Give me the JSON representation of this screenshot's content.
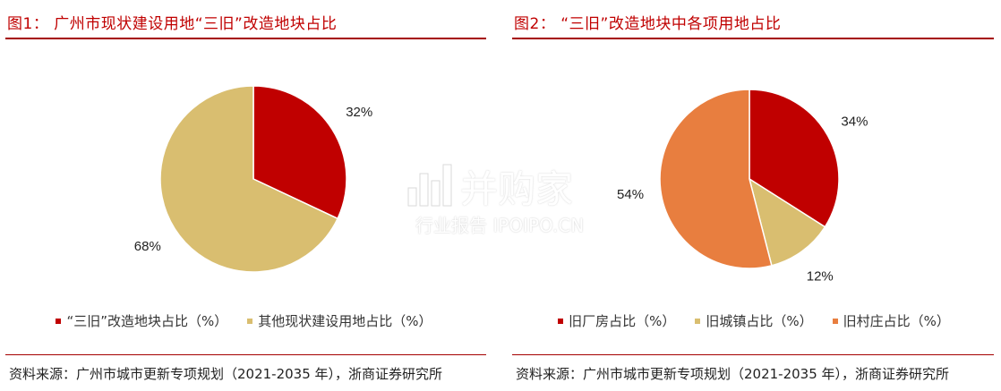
{
  "charts": [
    {
      "title": "图1： 广州市现状建设用地“三旧”改造地块占比",
      "legend": [
        {
          "label": "“三旧”改造地块占比（%）",
          "color": "#C00000"
        },
        {
          "label": "其他现状建设用地占比（%）",
          "color": "#D9BE70"
        }
      ],
      "source": "资料来源：广州市城市更新专项规划（2021-2035 年），浙商证券研究所"
    },
    {
      "title": "图2： “三旧”改造地块中各项用地占比",
      "legend": [
        {
          "label": "旧厂房占比（%）",
          "color": "#C00000"
        },
        {
          "label": "旧城镇占比（%）",
          "color": "#D9BE70"
        },
        {
          "label": "旧村庄占比（%）",
          "color": "#E87E3F"
        }
      ],
      "source": "资料来源：广州市城市更新专项规划（2021-2035 年），浙商证券研究所"
    }
  ],
  "chart_data": [
    {
      "type": "pie",
      "slices": [
        {
          "label": "“三旧”改造地块占比（%）",
          "value": 32,
          "display": "32%",
          "color": "#C00000"
        },
        {
          "label": "其他现状建设用地占比（%）",
          "value": 68,
          "display": "68%",
          "color": "#D9BE70"
        }
      ]
    },
    {
      "type": "pie",
      "slices": [
        {
          "label": "旧厂房占比（%）",
          "value": 34,
          "display": "34%",
          "color": "#C00000"
        },
        {
          "label": "旧城镇占比（%）",
          "value": 12,
          "display": "12%",
          "color": "#D9BE70"
        },
        {
          "label": "旧村庄占比（%）",
          "value": 54,
          "display": "54%",
          "color": "#E87E3F"
        }
      ]
    }
  ],
  "watermark": {
    "main": "并购家",
    "sub": "行业报告 IPOIPO.CN"
  }
}
